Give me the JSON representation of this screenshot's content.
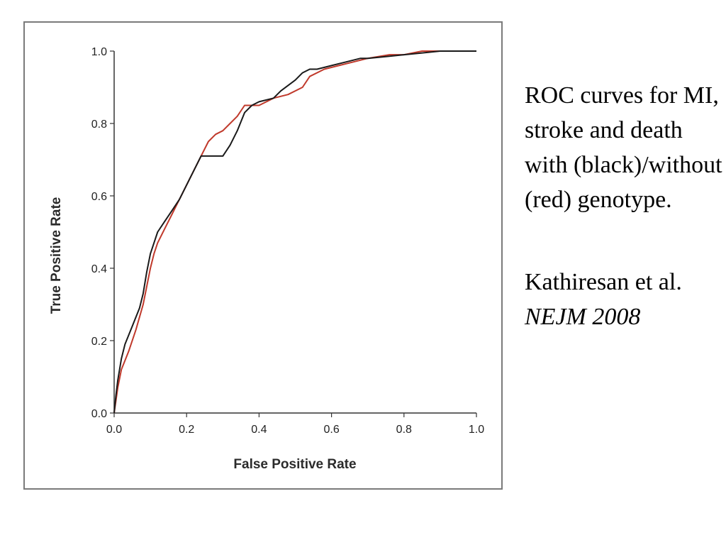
{
  "caption": {
    "description": "ROC curves for MI, stroke and death with (black)/without (red) genotype.",
    "citation_authors": "Kathiresan et al.",
    "citation_journal": "NEJM 2008"
  },
  "chart_data": {
    "type": "line",
    "title": "",
    "xlabel": "False Positive Rate",
    "ylabel": "True Positive Rate",
    "xlim": [
      0,
      1
    ],
    "ylim": [
      0,
      1
    ],
    "xticks": [
      "0.0",
      "0.2",
      "0.4",
      "0.6",
      "0.8",
      "1.0"
    ],
    "yticks": [
      "0.0",
      "0.2",
      "0.4",
      "0.6",
      "0.8",
      "1.0"
    ],
    "grid": false,
    "legend": "none",
    "series": [
      {
        "color": "#1a1a1a",
        "x": [
          0,
          0.005,
          0.01,
          0.02,
          0.03,
          0.05,
          0.07,
          0.08,
          0.09,
          0.1,
          0.11,
          0.12,
          0.14,
          0.16,
          0.18,
          0.2,
          0.22,
          0.24,
          0.26,
          0.3,
          0.32,
          0.34,
          0.36,
          0.38,
          0.4,
          0.44,
          0.46,
          0.5,
          0.52,
          0.54,
          0.56,
          0.6,
          0.64,
          0.68,
          0.7,
          0.75,
          0.8,
          0.85,
          0.9,
          1.0
        ],
        "y": [
          0,
          0.05,
          0.09,
          0.15,
          0.19,
          0.24,
          0.29,
          0.33,
          0.39,
          0.44,
          0.47,
          0.5,
          0.53,
          0.56,
          0.59,
          0.63,
          0.67,
          0.71,
          0.71,
          0.71,
          0.74,
          0.78,
          0.83,
          0.85,
          0.86,
          0.87,
          0.89,
          0.92,
          0.94,
          0.95,
          0.95,
          0.96,
          0.97,
          0.98,
          0.98,
          0.985,
          0.99,
          0.995,
          1.0,
          1.0
        ]
      },
      {
        "color": "#c0392b",
        "x": [
          0,
          0.01,
          0.02,
          0.04,
          0.06,
          0.08,
          0.09,
          0.1,
          0.11,
          0.12,
          0.14,
          0.16,
          0.18,
          0.2,
          0.22,
          0.24,
          0.26,
          0.28,
          0.3,
          0.32,
          0.34,
          0.36,
          0.38,
          0.4,
          0.44,
          0.48,
          0.52,
          0.54,
          0.58,
          0.62,
          0.66,
          0.7,
          0.76,
          0.8,
          0.85,
          0.9,
          1.0
        ],
        "y": [
          0,
          0.07,
          0.12,
          0.17,
          0.23,
          0.3,
          0.35,
          0.4,
          0.44,
          0.47,
          0.51,
          0.55,
          0.59,
          0.63,
          0.67,
          0.71,
          0.75,
          0.77,
          0.78,
          0.8,
          0.82,
          0.85,
          0.85,
          0.85,
          0.87,
          0.88,
          0.9,
          0.93,
          0.95,
          0.96,
          0.97,
          0.98,
          0.99,
          0.99,
          1.0,
          1.0,
          1.0
        ]
      }
    ]
  }
}
